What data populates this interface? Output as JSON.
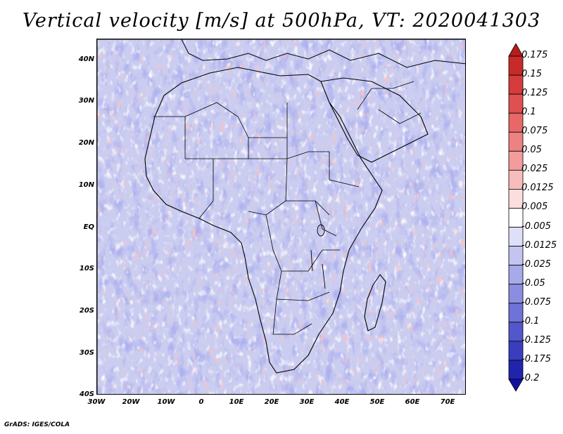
{
  "title": "Vertical velocity [m/s] at 500hPa, VT: 2020041303",
  "credit": "GrADS: IGES/COLA",
  "lat_labels": [
    "40N",
    "30N",
    "20N",
    "10N",
    "EQ",
    "10S",
    "20S",
    "30S",
    "40S"
  ],
  "lon_labels": [
    "30W",
    "20W",
    "10W",
    "0",
    "10E",
    "20E",
    "30E",
    "40E",
    "50E",
    "60E",
    "70E"
  ],
  "colorbar": {
    "labels": [
      "0.175",
      "0.15",
      "0.125",
      "0.1",
      "0.075",
      "0.05",
      "0.025",
      "0.0125",
      "0.005",
      "-0.005",
      "-0.0125",
      "-0.025",
      "-0.05",
      "-0.075",
      "-0.1",
      "-0.125",
      "-0.175",
      "-0.2"
    ],
    "colors": [
      "#b81c1c",
      "#c82a2a",
      "#d63c3c",
      "#e05050",
      "#e86868",
      "#ee8282",
      "#f39c9c",
      "#f8bcbc",
      "#fcdede",
      "#ffffff",
      "#dedff8",
      "#c3c5f0",
      "#a7aae8",
      "#8b8ee0",
      "#6f72d6",
      "#5357cc",
      "#3a3ebe",
      "#2024ad",
      "#1010a0"
    ]
  }
}
